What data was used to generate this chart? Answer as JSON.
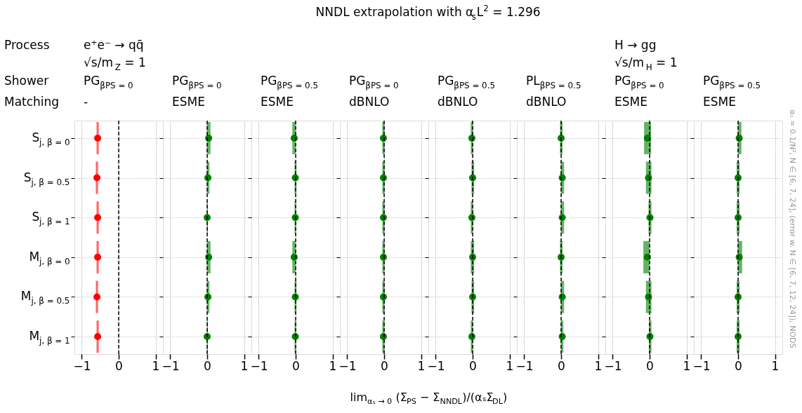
{
  "chart_data": [
    {
      "type": "other",
      "title": "NNDL extrapolation with α$_{s}$L$^{2}$ = 1.296",
      "xlabel": "lim$_{αₛ → 0}$ (Σ$_{PS}$ − Σ$_{NNDL}$)/(αₛΣ$_{DL}$)",
      "annotations": [
        "Process",
        "Shower",
        "Matching",
        "αₛ = 0.1/N², N ∈ [6, 7, 24], (error w. N ∈ [6, 7, 12, 24]), NODS"
      ]
    },
    {
      "type": "scatter",
      "orientation": "horizontal",
      "categories": [
        "S$_{j, β = 0}$",
        "S$_{j, β = 0.5}$",
        "S$_{j, β = 1}$",
        "M$_{j, β = 0}$",
        "M$_{j, β = 0.5}$",
        "M$_{j, β = 1}$"
      ],
      "annotations": [
        "e⁺e⁻ → qq̄",
        "√s/m$_{Z}$ = 1",
        "PG$_{βPS = 0}$",
        "-"
      ],
      "xlim": [
        -1.2,
        1.2
      ],
      "xticks": [
        -1,
        0,
        1
      ],
      "grid": true,
      "marker": "circle",
      "ref_lines": [
        {
          "axis": "x",
          "value": 0,
          "color": "#000000",
          "line_style": "dashed"
        }
      ],
      "series": [
        {
          "color": "#ff0000",
          "values": [
            -0.57,
            -0.59,
            -0.57,
            -0.57,
            -0.59,
            -0.57
          ],
          "errors": [
            0.03,
            0.03,
            0.03,
            0.03,
            0.03,
            0.03
          ]
        }
      ]
    },
    {
      "type": "scatter",
      "orientation": "horizontal",
      "tick_labels": "x",
      "categories": [
        null,
        null,
        null,
        null,
        null,
        null
      ],
      "annotations": [
        "PG$_{βPS = 0}$",
        "ESME"
      ],
      "xlim": [
        -1.2,
        1.2
      ],
      "xticks": [
        -1,
        0,
        1
      ],
      "grid": true,
      "marker": "circle",
      "ref_lines": [
        {
          "axis": "x",
          "value": 0,
          "color": "#000000",
          "line_style": "dashed"
        }
      ],
      "series": [
        {
          "color": "#008000",
          "values": [
            0.04,
            0.02,
            0.0,
            0.04,
            0.02,
            0.0
          ],
          "errors": [
            [
              -0.01,
              0.09
            ],
            [
              -0.01,
              0.06
            ],
            [
              -0.01,
              0.02
            ],
            [
              -0.01,
              0.09
            ],
            [
              -0.01,
              0.06
            ],
            [
              -0.01,
              0.02
            ]
          ]
        }
      ]
    },
    {
      "type": "scatter",
      "orientation": "horizontal",
      "tick_labels": "x",
      "categories": [
        null,
        null,
        null,
        null,
        null,
        null
      ],
      "annotations": [
        "PG$_{βPS = 0.5}$",
        "ESME"
      ],
      "xlim": [
        -1.2,
        1.2
      ],
      "xticks": [
        -1,
        0,
        1
      ],
      "grid": true,
      "marker": "circle",
      "ref_lines": [
        {
          "axis": "x",
          "value": 0,
          "color": "#000000",
          "line_style": "dashed"
        }
      ],
      "series": [
        {
          "color": "#008000",
          "values": [
            -0.04,
            -0.01,
            -0.01,
            -0.04,
            -0.01,
            -0.01
          ],
          "errors": [
            [
              -0.09,
              0.0
            ],
            [
              -0.03,
              0.02
            ],
            [
              -0.03,
              0.01
            ],
            [
              -0.09,
              0.0
            ],
            [
              -0.03,
              0.02
            ],
            [
              -0.03,
              0.01
            ]
          ]
        }
      ]
    },
    {
      "type": "scatter",
      "orientation": "horizontal",
      "tick_labels": "x",
      "categories": [
        null,
        null,
        null,
        null,
        null,
        null
      ],
      "annotations": [
        "PG$_{βPS = 0}$",
        "dBNLO"
      ],
      "xlim": [
        -1.2,
        1.2
      ],
      "xticks": [
        -1,
        0,
        1
      ],
      "grid": true,
      "marker": "circle",
      "ref_lines": [
        {
          "axis": "x",
          "value": 0,
          "color": "#000000",
          "line_style": "dashed"
        }
      ],
      "series": [
        {
          "color": "#008000",
          "values": [
            -0.02,
            -0.02,
            -0.02,
            -0.02,
            -0.02,
            -0.02
          ],
          "errors": [
            [
              -0.05,
              0.01
            ],
            [
              -0.05,
              0.01
            ],
            [
              -0.05,
              0.01
            ],
            [
              -0.05,
              0.01
            ],
            [
              -0.05,
              0.01
            ],
            [
              -0.05,
              0.01
            ]
          ]
        }
      ]
    },
    {
      "type": "scatter",
      "orientation": "horizontal",
      "tick_labels": "x",
      "categories": [
        null,
        null,
        null,
        null,
        null,
        null
      ],
      "annotations": [
        "PG$_{βPS = 0.5}$",
        "dBNLO"
      ],
      "xlim": [
        -1.2,
        1.2
      ],
      "xticks": [
        -1,
        0,
        1
      ],
      "grid": true,
      "marker": "circle",
      "ref_lines": [
        {
          "axis": "x",
          "value": 0,
          "color": "#000000",
          "line_style": "dashed"
        }
      ],
      "series": [
        {
          "color": "#008000",
          "values": [
            -0.02,
            0.0,
            -0.02,
            0.0,
            0.0,
            -0.02
          ],
          "errors": [
            [
              -0.05,
              0.01
            ],
            [
              -0.03,
              0.04
            ],
            [
              -0.05,
              0.01
            ],
            [
              -0.05,
              0.04
            ],
            [
              -0.03,
              0.04
            ],
            [
              -0.05,
              0.01
            ]
          ]
        }
      ]
    },
    {
      "type": "scatter",
      "orientation": "horizontal",
      "tick_labels": "x",
      "categories": [
        null,
        null,
        null,
        null,
        null,
        null
      ],
      "annotations": [
        "PL$_{βPS = 0.5}$",
        "dBNLO"
      ],
      "xlim": [
        -1.2,
        1.2
      ],
      "xticks": [
        -1,
        0,
        1
      ],
      "grid": true,
      "marker": "circle",
      "ref_lines": [
        {
          "axis": "x",
          "value": 0,
          "color": "#000000",
          "line_style": "dashed"
        }
      ],
      "series": [
        {
          "color": "#008000",
          "values": [
            0.0,
            0.03,
            0.03,
            0.0,
            0.03,
            0.03
          ],
          "errors": [
            [
              -0.03,
              0.04
            ],
            [
              -0.01,
              0.08
            ],
            [
              -0.01,
              0.08
            ],
            [
              -0.03,
              0.04
            ],
            [
              -0.01,
              0.08
            ],
            [
              -0.01,
              0.06
            ]
          ]
        }
      ]
    },
    {
      "type": "scatter",
      "orientation": "horizontal",
      "tick_labels": "x",
      "categories": [
        null,
        null,
        null,
        null,
        null,
        null
      ],
      "annotations": [
        "H → gg",
        "√s/m$_{H}$ = 1",
        "PG$_{βPS = 0}$",
        "ESME"
      ],
      "xlim": [
        -1.2,
        1.2
      ],
      "xticks": [
        -1,
        0,
        1
      ],
      "grid": true,
      "marker": "circle",
      "ref_lines": [
        {
          "axis": "x",
          "value": 0,
          "color": "#000000",
          "line_style": "dashed"
        }
      ],
      "series": [
        {
          "color": "#008000",
          "values": [
            -0.06,
            -0.03,
            0.01,
            -0.06,
            -0.03,
            0.01
          ],
          "errors": [
            [
              -0.15,
              0.04
            ],
            [
              -0.1,
              0.05
            ],
            [
              -0.03,
              0.05
            ],
            [
              -0.17,
              0.0
            ],
            [
              -0.1,
              0.05
            ],
            [
              -0.02,
              0.05
            ]
          ]
        }
      ]
    },
    {
      "type": "scatter",
      "orientation": "horizontal",
      "tick_labels": "x",
      "categories": [
        null,
        null,
        null,
        null,
        null,
        null
      ],
      "annotations": [
        "PG$_{βPS = 0.5}$",
        "ESME"
      ],
      "xlim": [
        -1.2,
        1.2
      ],
      "xticks": [
        -1,
        0,
        1
      ],
      "grid": true,
      "marker": "circle",
      "ref_lines": [
        {
          "axis": "x",
          "value": 0,
          "color": "#000000",
          "line_style": "dashed"
        }
      ],
      "series": [
        {
          "color": "#008000",
          "values": [
            0.03,
            0.0,
            0.0,
            0.03,
            0.0,
            0.0
          ],
          "errors": [
            [
              -0.01,
              0.09
            ],
            [
              -0.04,
              0.04
            ],
            [
              -0.04,
              0.04
            ],
            [
              -0.01,
              0.11
            ],
            [
              -0.04,
              0.04
            ],
            [
              -0.04,
              0.04
            ]
          ]
        }
      ]
    }
  ]
}
